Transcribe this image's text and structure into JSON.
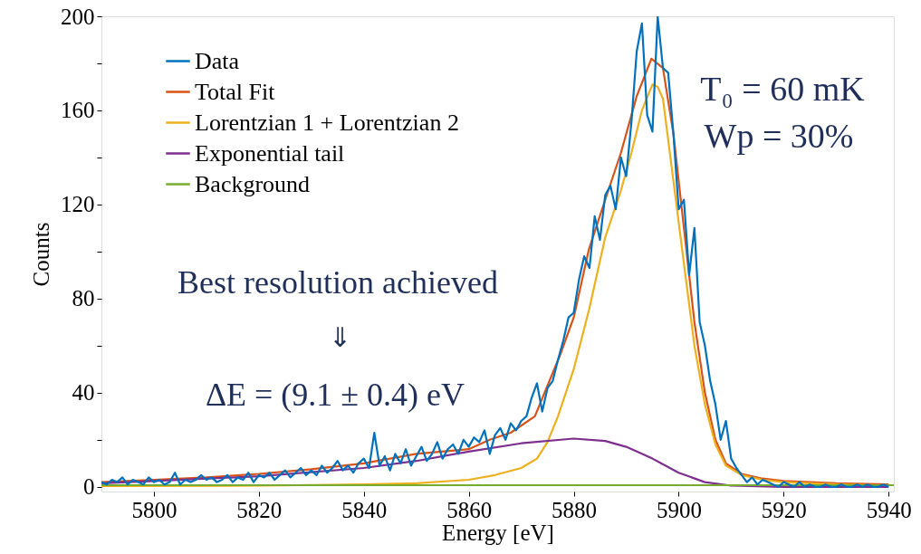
{
  "chart_data": {
    "type": "line",
    "xlabel": "Energy [eV]",
    "ylabel": "Counts",
    "xlim": [
      5790,
      5941
    ],
    "xticks": [
      5800,
      5820,
      5840,
      5860,
      5880,
      5900,
      5920,
      5940
    ],
    "ylim": [
      -2,
      200
    ],
    "yticks": [
      0,
      {
        "value": 20,
        "label": null
      },
      40,
      {
        "value": 60,
        "label": null
      },
      80,
      {
        "value": 100,
        "label": null
      },
      120,
      {
        "value": 140,
        "label": null
      },
      160,
      {
        "value": 180,
        "label": null
      },
      200
    ],
    "grid": false,
    "legend": "top left",
    "marker": "none",
    "line_style": "solid",
    "annotations": [
      "Best resolution achieved",
      "⇓",
      "ΔE = (9.1 ± 0.4) eV",
      "T₀ = 60 mK",
      "Wp = 30%"
    ],
    "series": [
      {
        "name": "Data",
        "color": "#0072bd",
        "x": [
          5790,
          5791,
          5792,
          5793,
          5794,
          5795,
          5796,
          5797,
          5798,
          5799,
          5800,
          5801,
          5802,
          5803,
          5804,
          5805,
          5806,
          5807,
          5808,
          5809,
          5810,
          5811,
          5812,
          5813,
          5814,
          5815,
          5816,
          5817,
          5818,
          5819,
          5820,
          5821,
          5822,
          5823,
          5824,
          5825,
          5826,
          5827,
          5828,
          5829,
          5830,
          5831,
          5832,
          5833,
          5834,
          5835,
          5836,
          5837,
          5838,
          5839,
          5840,
          5841,
          5842,
          5843,
          5844,
          5845,
          5846,
          5847,
          5848,
          5849,
          5850,
          5851,
          5852,
          5853,
          5854,
          5855,
          5856,
          5857,
          5858,
          5859,
          5860,
          5861,
          5862,
          5863,
          5864,
          5865,
          5866,
          5867,
          5868,
          5869,
          5870,
          5871,
          5872,
          5873,
          5874,
          5875,
          5876,
          5877,
          5878,
          5879,
          5880,
          5881,
          5882,
          5883,
          5884,
          5885,
          5886,
          5887,
          5888,
          5889,
          5890,
          5891,
          5892,
          5893,
          5894,
          5895,
          5896,
          5897,
          5898,
          5899,
          5900,
          5901,
          5902,
          5903,
          5904,
          5905,
          5906,
          5907,
          5908,
          5909,
          5910,
          5911,
          5912,
          5913,
          5914,
          5915,
          5916,
          5917,
          5918,
          5919,
          5920,
          5921,
          5922,
          5923,
          5924,
          5925,
          5926,
          5927,
          5928,
          5929,
          5930,
          5931,
          5932,
          5933,
          5934,
          5935,
          5936,
          5937,
          5938,
          5939,
          5940
        ],
        "values": [
          2,
          1,
          3,
          2,
          4,
          1,
          3,
          2,
          1,
          4,
          2,
          3,
          1,
          2,
          6,
          1,
          3,
          2,
          3,
          5,
          3,
          4,
          2,
          3,
          5,
          2,
          4,
          3,
          6,
          2,
          5,
          4,
          6,
          3,
          5,
          7,
          4,
          6,
          8,
          5,
          7,
          5,
          9,
          6,
          8,
          11,
          7,
          9,
          6,
          10,
          12,
          8,
          23,
          9,
          13,
          7,
          14,
          10,
          16,
          9,
          13,
          17,
          11,
          14,
          19,
          12,
          16,
          18,
          14,
          20,
          17,
          21,
          19,
          24,
          14,
          22,
          25,
          20,
          27,
          24,
          28,
          30,
          38,
          44,
          32,
          42,
          45,
          54,
          62,
          72,
          74,
          88,
          98,
          93,
          115,
          105,
          124,
          128,
          118,
          140,
          132,
          155,
          185,
          197,
          158,
          151,
          200,
          178,
          176,
          150,
          118,
          122,
          90,
          110,
          70,
          60,
          45,
          35,
          20,
          28,
          12,
          8,
          5,
          2,
          4,
          1,
          3,
          2,
          1,
          0,
          2,
          1,
          0,
          2,
          0,
          1,
          0,
          0,
          1,
          0,
          0,
          1,
          0,
          0,
          1,
          0,
          1,
          0,
          0,
          1,
          0
        ]
      },
      {
        "name": "Total Fit",
        "color": "#d95319",
        "x": [
          5790,
          5800,
          5810,
          5820,
          5830,
          5840,
          5850,
          5860,
          5864,
          5868,
          5872.6,
          5877.4,
          5880,
          5882.9,
          5886,
          5889,
          5892,
          5894.8,
          5897,
          5899,
          5901,
          5903,
          5905,
          5907,
          5909,
          5912,
          5916,
          5920,
          5930,
          5940
        ],
        "values": [
          2,
          3,
          4,
          5.5,
          7.5,
          10,
          14,
          16,
          20,
          23,
          30,
          56,
          72,
          101,
          122,
          142,
          166,
          182,
          178,
          150,
          110,
          70,
          40,
          20,
          10,
          5.5,
          3.5,
          2.5,
          1.5,
          1
        ]
      },
      {
        "name": "Lorentzian 1 + Lorentzian 2",
        "color": "#edb120",
        "x": [
          5790,
          5820,
          5840,
          5850,
          5860,
          5865,
          5870,
          5873,
          5875,
          5877,
          5880,
          5883,
          5886,
          5889,
          5891,
          5893,
          5895,
          5896,
          5897,
          5899,
          5901,
          5903,
          5905,
          5907,
          5909,
          5912,
          5916,
          5920,
          5930,
          5940
        ],
        "values": [
          0.3,
          0.5,
          1,
          1.5,
          3,
          5,
          8,
          12,
          19,
          30,
          50,
          76,
          106,
          126,
          142,
          160,
          171,
          170,
          165,
          130,
          95,
          60,
          35,
          18,
          9,
          5,
          3,
          2,
          1,
          0.5
        ]
      },
      {
        "name": "Exponential tail",
        "color": "#7e2f8e",
        "x": [
          5790,
          5800,
          5820,
          5840,
          5850,
          5860,
          5870,
          5880,
          5886,
          5890,
          5895,
          5900,
          5905,
          5910,
          5920,
          5940
        ],
        "values": [
          1.5,
          2.5,
          4.5,
          8,
          11,
          15,
          18.5,
          20.5,
          19.5,
          17,
          12,
          6,
          2,
          0.5,
          0,
          0
        ]
      },
      {
        "name": "Background",
        "color": "#77ac30",
        "x": [
          5790,
          5941
        ],
        "values": [
          0.7,
          0.7
        ]
      }
    ]
  }
}
